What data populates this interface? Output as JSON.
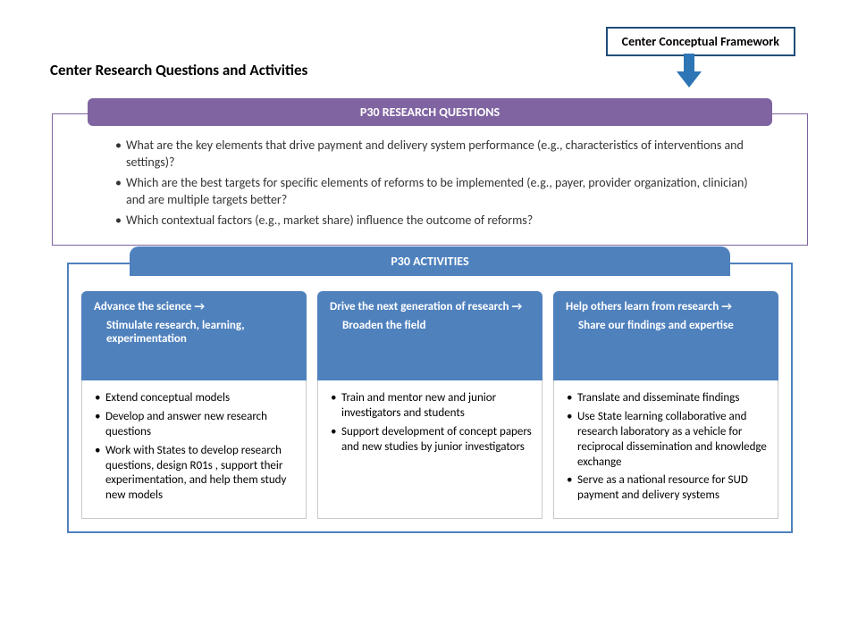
{
  "framework_label": "Center Conceptual Framework",
  "main_title": "Center Research Questions and Activities",
  "section1": {
    "header": "P30 RESEARCH QUESTIONS",
    "header_bg": "#8064a2",
    "border_color": "#7e649e",
    "items": [
      "What are the key elements that drive payment and delivery system performance (e.g., characteristics of interventions and settings)?",
      "Which are the best targets for specific elements of reforms to be implemented (e.g., payer, provider organization, clinician) and are multiple targets better?",
      "Which contextual factors (e.g., market share) influence the outcome of reforms?"
    ]
  },
  "section2": {
    "header": "P30 ACTIVITIES",
    "header_bg": "#4f81bd",
    "border_color": "#4f81bd",
    "columns": [
      {
        "title": "Advance the science",
        "subtitle": "Stimulate research, learning, experimentation",
        "items": [
          "Extend conceptual models",
          "Develop and answer new research questions",
          "Work with States to develop research questions, design R01s , support their experimentation, and help them study new models"
        ]
      },
      {
        "title": "Drive the next generation of research",
        "subtitle": "Broaden the field",
        "items": [
          "Train and mentor new and junior investigators and students",
          "Support development of concept papers and new studies by junior investigators"
        ]
      },
      {
        "title": "Help others learn from research",
        "subtitle": "Share our findings and expertise",
        "items": [
          "Translate and disseminate findings",
          "Use State learning collaborative and research laboratory as a vehicle for reciprocal dissemination and knowledge exchange",
          "Serve as a national resource for SUD payment and delivery systems"
        ]
      }
    ]
  },
  "arrow_glyph": "→",
  "colors": {
    "arrow_fill": "#2e75b6",
    "framework_border": "#1f4e79"
  }
}
